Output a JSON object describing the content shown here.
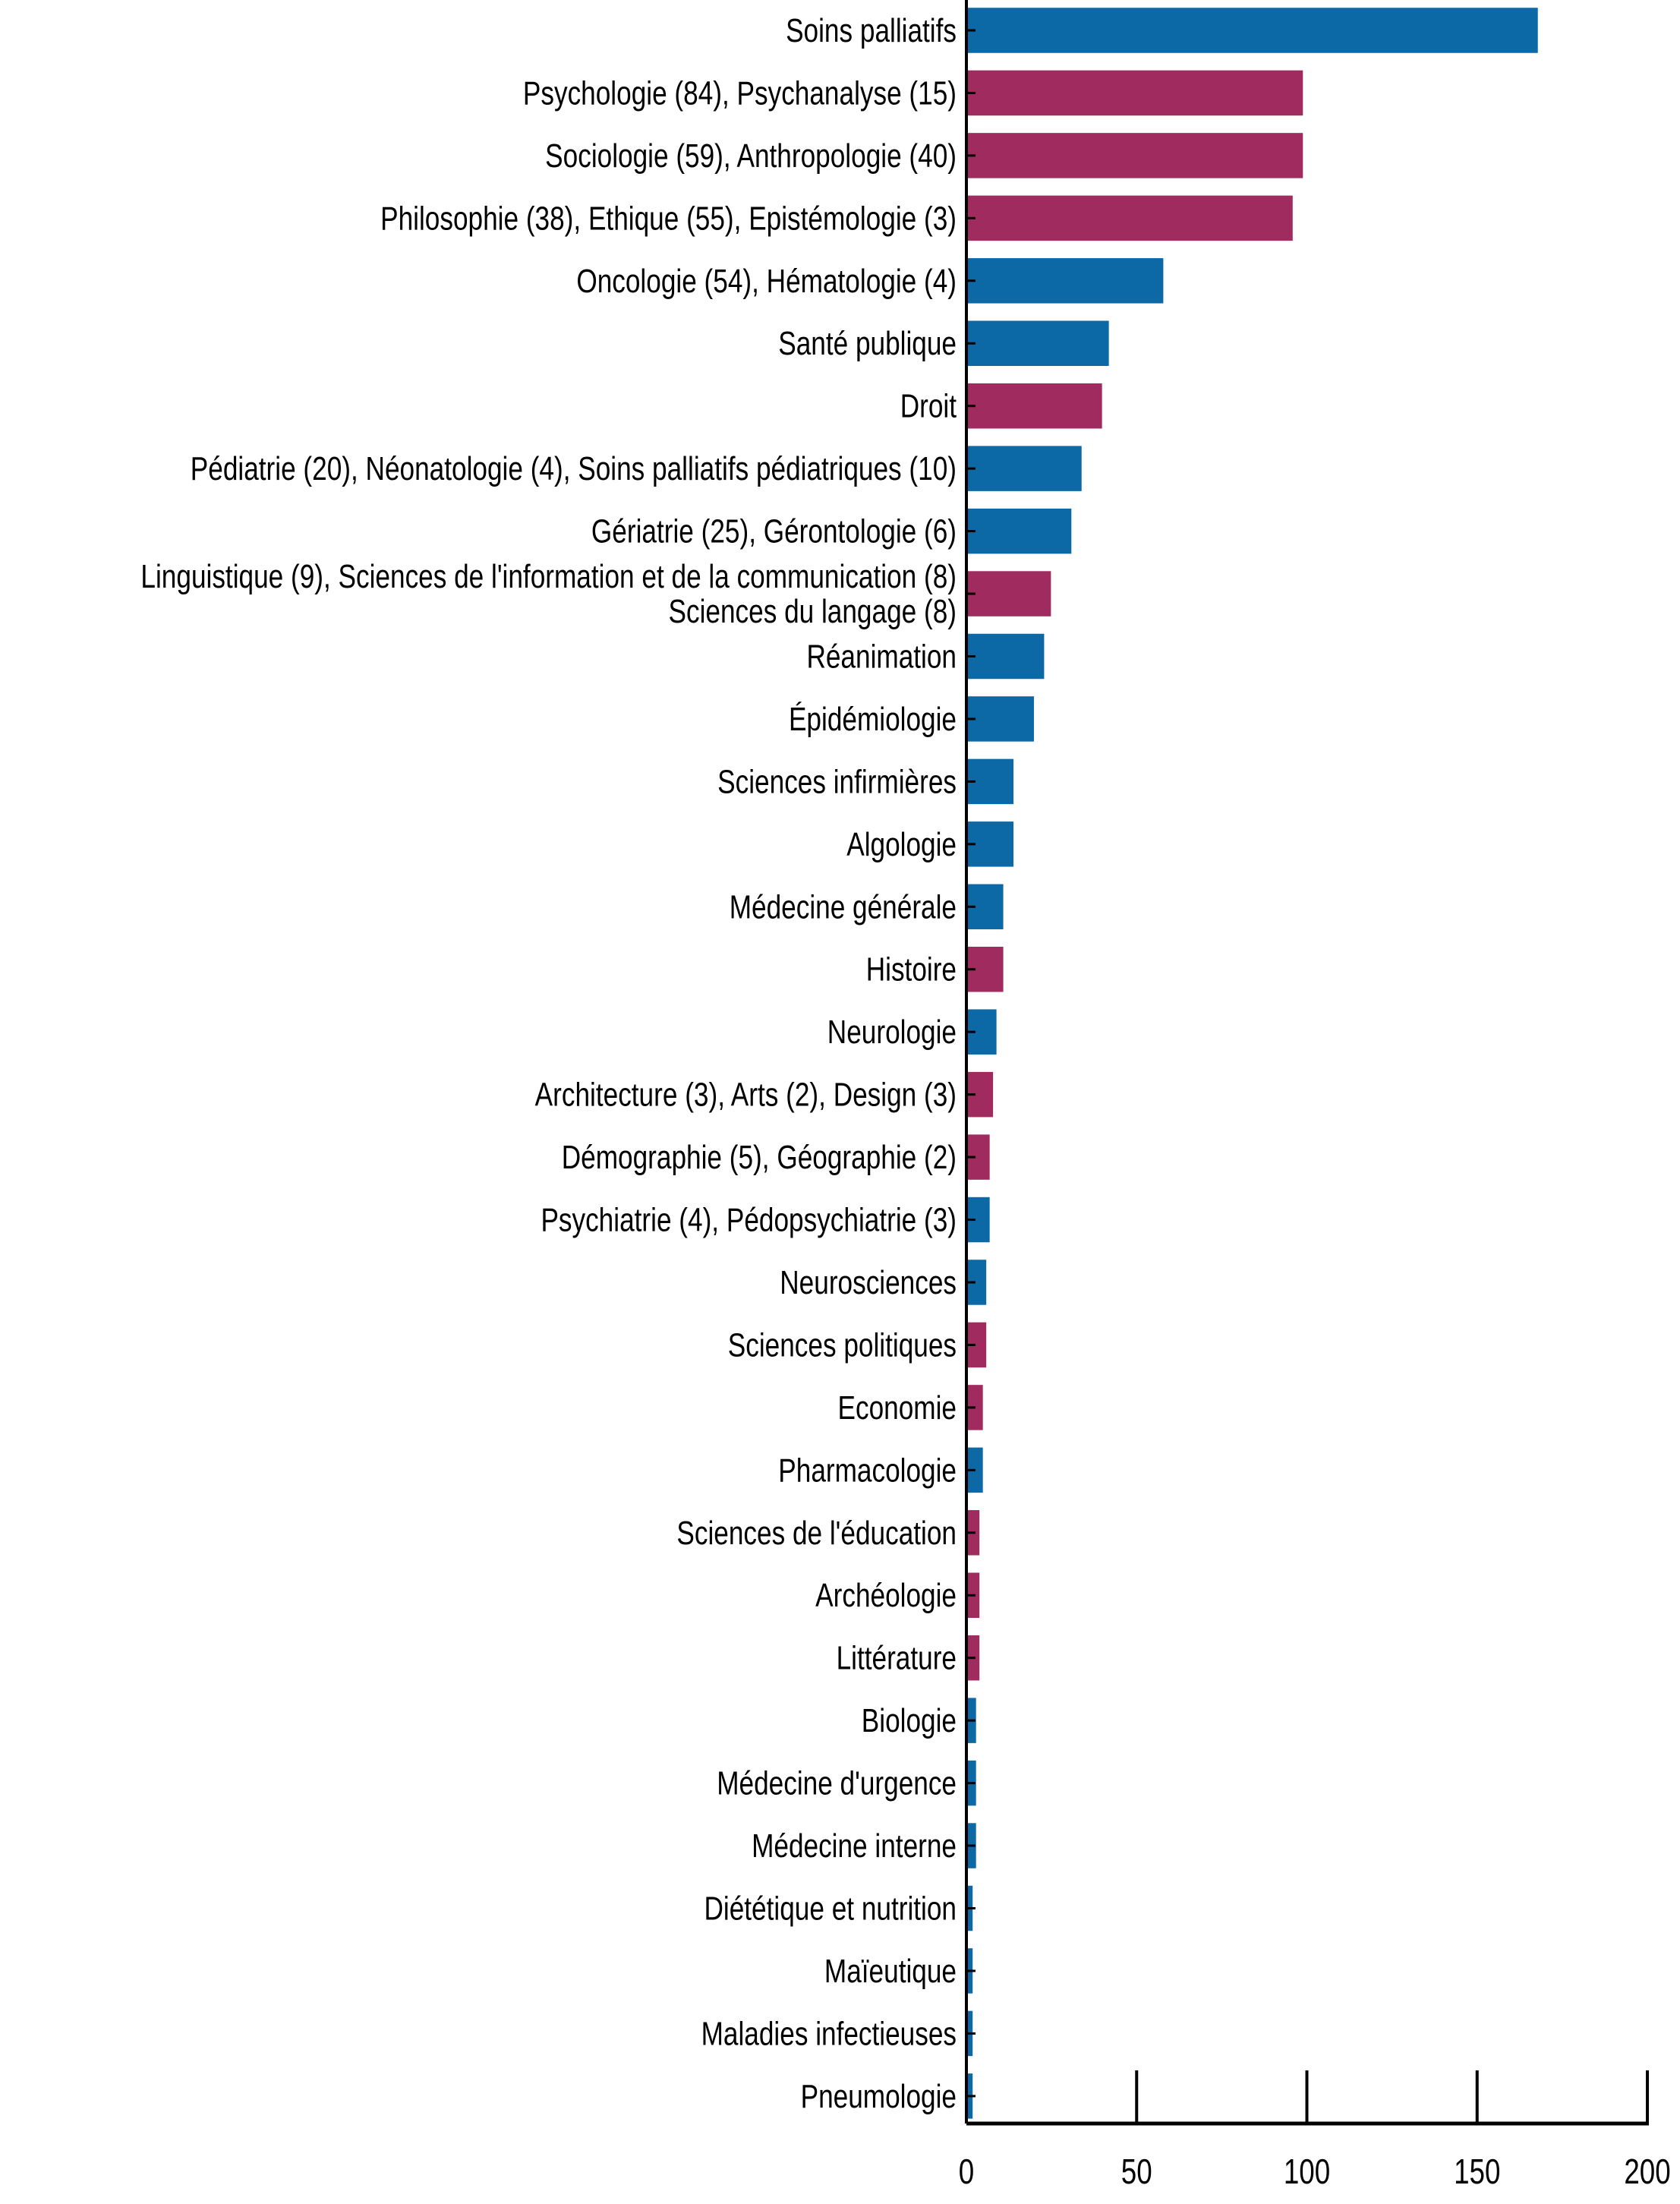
{
  "chart_data": {
    "type": "bar",
    "orientation": "horizontal",
    "title": "",
    "xlabel": "",
    "ylabel": "",
    "xlim": [
      0,
      200
    ],
    "xticks": [
      0,
      50,
      100,
      150,
      200
    ],
    "grid": false,
    "colors": {
      "medical": "#0d69a6",
      "shs": "#a02b5f"
    },
    "bars": [
      {
        "label": [
          "Soins palliatifs"
        ],
        "value": 168,
        "group": "medical"
      },
      {
        "label": [
          "Psychologie (84), Psychanalyse (15)"
        ],
        "value": 99,
        "group": "shs"
      },
      {
        "label": [
          "Sociologie (59), Anthropologie (40)"
        ],
        "value": 99,
        "group": "shs"
      },
      {
        "label": [
          "Philosophie (38), Ethique (55), Epistémologie (3)"
        ],
        "value": 96,
        "group": "shs"
      },
      {
        "label": [
          "Oncologie (54), Hématologie (4)"
        ],
        "value": 58,
        "group": "medical"
      },
      {
        "label": [
          "Santé publique"
        ],
        "value": 42,
        "group": "medical"
      },
      {
        "label": [
          "Droit"
        ],
        "value": 40,
        "group": "shs"
      },
      {
        "label": [
          "Pédiatrie (20), Néonatologie (4), Soins palliatifs pédiatriques (10)"
        ],
        "value": 34,
        "group": "medical"
      },
      {
        "label": [
          "Gériatrie (25), Gérontologie (6)"
        ],
        "value": 31,
        "group": "medical"
      },
      {
        "label": [
          "Linguistique (9), Sciences de l'information et de la communication (8)",
          "Sciences du langage (8)"
        ],
        "value": 25,
        "group": "shs"
      },
      {
        "label": [
          "Réanimation"
        ],
        "value": 23,
        "group": "medical"
      },
      {
        "label": [
          "Épidémiologie"
        ],
        "value": 20,
        "group": "medical"
      },
      {
        "label": [
          "Sciences infirmières"
        ],
        "value": 14,
        "group": "medical"
      },
      {
        "label": [
          "Algologie"
        ],
        "value": 14,
        "group": "medical"
      },
      {
        "label": [
          "Médecine générale"
        ],
        "value": 11,
        "group": "medical"
      },
      {
        "label": [
          "Histoire"
        ],
        "value": 11,
        "group": "shs"
      },
      {
        "label": [
          "Neurologie"
        ],
        "value": 9,
        "group": "medical"
      },
      {
        "label": [
          "Architecture (3), Arts (2), Design (3)"
        ],
        "value": 8,
        "group": "shs"
      },
      {
        "label": [
          "Démographie (5), Géographie (2)"
        ],
        "value": 7,
        "group": "shs"
      },
      {
        "label": [
          "Psychiatrie (4), Pédopsychiatrie (3)"
        ],
        "value": 7,
        "group": "medical"
      },
      {
        "label": [
          "Neurosciences"
        ],
        "value": 6,
        "group": "medical"
      },
      {
        "label": [
          "Sciences politiques"
        ],
        "value": 6,
        "group": "shs"
      },
      {
        "label": [
          "Economie"
        ],
        "value": 5,
        "group": "shs"
      },
      {
        "label": [
          "Pharmacologie"
        ],
        "value": 5,
        "group": "medical"
      },
      {
        "label": [
          "Sciences de l'éducation"
        ],
        "value": 4,
        "group": "shs"
      },
      {
        "label": [
          "Archéologie"
        ],
        "value": 4,
        "group": "shs"
      },
      {
        "label": [
          "Littérature"
        ],
        "value": 4,
        "group": "shs"
      },
      {
        "label": [
          "Biologie"
        ],
        "value": 3,
        "group": "medical"
      },
      {
        "label": [
          "Médecine d'urgence"
        ],
        "value": 3,
        "group": "medical"
      },
      {
        "label": [
          "Médecine interne"
        ],
        "value": 3,
        "group": "medical"
      },
      {
        "label": [
          "Diététique et nutrition"
        ],
        "value": 2,
        "group": "medical"
      },
      {
        "label": [
          "Maïeutique"
        ],
        "value": 2,
        "group": "medical"
      },
      {
        "label": [
          "Maladies infectieuses"
        ],
        "value": 2,
        "group": "medical"
      },
      {
        "label": [
          "Pneumologie"
        ],
        "value": 2,
        "group": "medical"
      }
    ]
  }
}
